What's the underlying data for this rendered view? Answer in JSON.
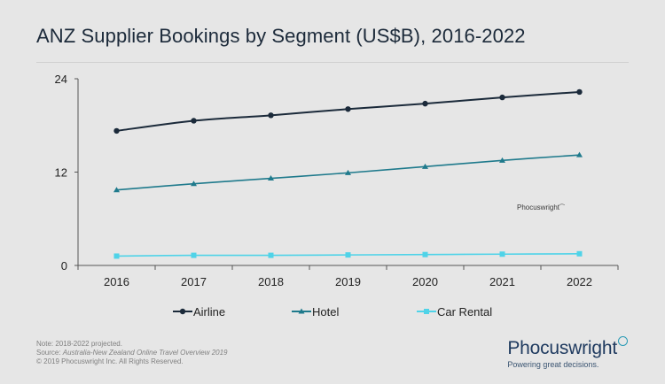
{
  "chart_data": {
    "type": "line",
    "title": "ANZ Supplier Bookings by Segment (US$B), 2016-2022",
    "categories": [
      "2016",
      "2017",
      "2018",
      "2019",
      "2020",
      "2021",
      "2022"
    ],
    "yticks": [
      "0",
      "12",
      "24"
    ],
    "ylim": [
      0,
      24
    ],
    "xlabel": "",
    "ylabel": "",
    "grid": false,
    "legend_position": "bottom",
    "series": [
      {
        "name": "Airline",
        "values": [
          17.3,
          18.6,
          19.3,
          20.1,
          20.8,
          21.6,
          22.3
        ],
        "color": "#1b2a3a",
        "marker": "circle"
      },
      {
        "name": "Hotel",
        "values": [
          9.7,
          10.5,
          11.2,
          11.9,
          12.7,
          13.5,
          14.2
        ],
        "color": "#1f7a8c",
        "marker": "triangle"
      },
      {
        "name": "Car Rental",
        "values": [
          1.2,
          1.3,
          1.3,
          1.35,
          1.4,
          1.45,
          1.5
        ],
        "color": "#4fd3e8",
        "marker": "square"
      }
    ]
  },
  "watermark": "Phocuswright",
  "footnotes": {
    "note": "Note: 2018-2022 projected.",
    "source_prefix": "Source: ",
    "source_title": "Australia-New Zealand Online Travel Overview 2019",
    "copyright": "© 2019  Phocuswright Inc. All Rights Reserved."
  },
  "brand": {
    "name": "Phocuswright",
    "tagline": "Powering great decisions."
  }
}
